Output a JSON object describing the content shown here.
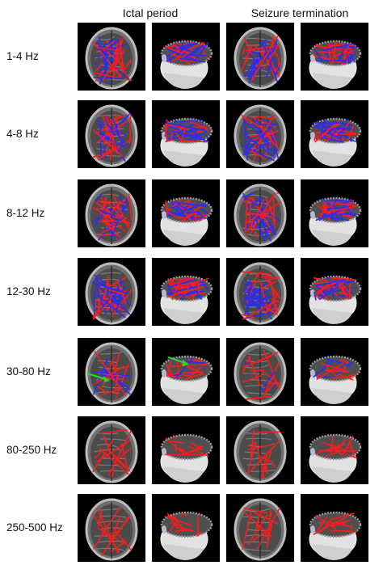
{
  "columns": {
    "ictal": "Ictal period",
    "termination": "Seizure termination"
  },
  "rows": [
    {
      "label": "1-4 Hz",
      "mix": "red-blue"
    },
    {
      "label": "4-8 Hz",
      "mix": "red-blue"
    },
    {
      "label": "8-12 Hz",
      "mix": "red-blue"
    },
    {
      "label": "12-30 Hz",
      "mix": "red-blue"
    },
    {
      "label": "30-80 Hz",
      "mix": "red-green-blue"
    },
    {
      "label": "80-250 Hz",
      "mix": "red"
    },
    {
      "label": "250-500 Hz",
      "mix": "red"
    }
  ],
  "colors": {
    "red": "#ff1a1a",
    "blue": "#2b2bff",
    "green": "#22dd22",
    "panel_bg": "#000000"
  }
}
